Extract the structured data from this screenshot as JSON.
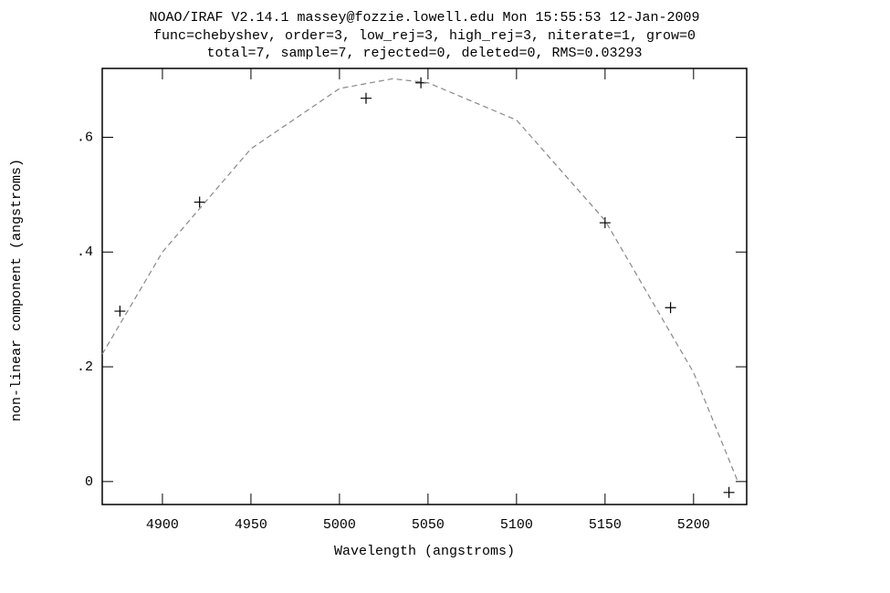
{
  "chart_data": {
    "type": "scatter",
    "title": [
      "NOAO/IRAF V2.14.1 massey@fozzie.lowell.edu Mon 15:55:53 12-Jan-2009",
      "func=chebyshev, order=3, low_rej=3, high_rej=3, niterate=1, grow=0",
      "total=7, sample=7, rejected=0, deleted=0, RMS=0.03293"
    ],
    "x_label": "Wavelength (angstroms)",
    "y_label": "non-linear component (angstroms)",
    "xlim": [
      4866,
      5230
    ],
    "ylim": [
      -0.04,
      0.72
    ],
    "xticks": [
      4900,
      4950,
      5000,
      5050,
      5100,
      5150,
      5200
    ],
    "yticks": [
      0,
      {
        "value": 0.2,
        "label": ".2"
      },
      {
        "value": 0.4,
        "label": ".4"
      },
      {
        "value": 0.6,
        "label": ".6"
      }
    ],
    "series": [
      {
        "style": "markers",
        "color": "#000000",
        "x": [
          4876,
          4921,
          5015,
          5046,
          5150,
          5187,
          5220
        ],
        "values": [
          0.297,
          0.487,
          0.668,
          0.695,
          0.451,
          0.303,
          -0.019
        ]
      },
      {
        "style": "dashed",
        "color": "#888888",
        "x": [
          4866,
          4900,
          4950,
          5000,
          5030,
          5050,
          5100,
          5150,
          5200,
          5225
        ],
        "values": [
          0.222,
          0.4,
          0.58,
          0.685,
          0.702,
          0.695,
          0.63,
          0.455,
          0.19,
          0
        ]
      }
    ]
  }
}
